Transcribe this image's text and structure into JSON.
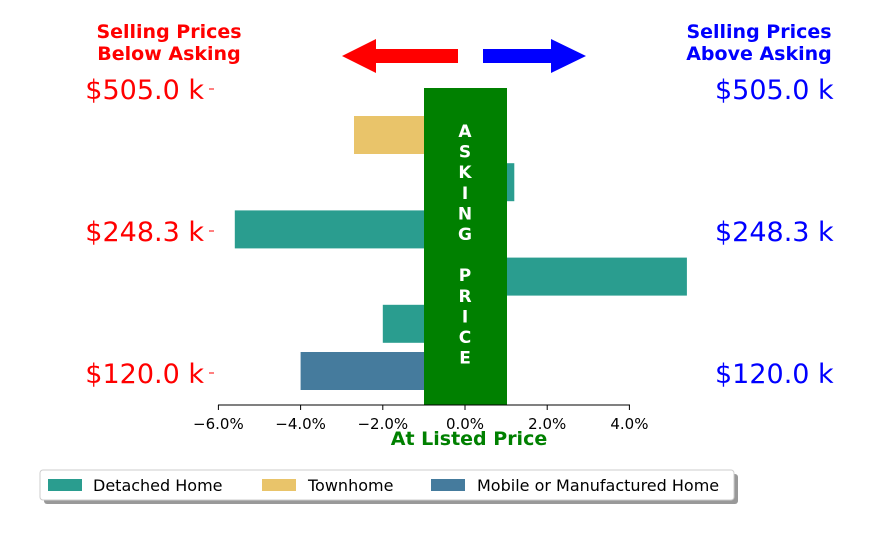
{
  "header": {
    "left_line1": "Selling Prices",
    "left_line2": "Below Asking",
    "right_line1": "Selling Prices",
    "right_line2": "Above Asking"
  },
  "colors": {
    "below": "#ff0000",
    "above": "#0000ff",
    "asking_bar": "#008000",
    "detached": "#2a9d8f",
    "townhome": "#e9c46a",
    "mobile": "#457b9d"
  },
  "asking_label_chars": [
    "A",
    "S",
    "K",
    "I",
    "N",
    "G",
    "",
    "P",
    "R",
    "I",
    "C",
    "E"
  ],
  "chart_data": {
    "type": "bar",
    "orientation": "horizontal",
    "xlabel": "At Listed Price",
    "xlim": [
      -6.2,
      8.8
    ],
    "xticks": [
      -6,
      -4,
      -2,
      0,
      2,
      4
    ],
    "xtick_labels": [
      "−6.0%",
      "−4.0%",
      "−2.0%",
      "0.0%",
      "2.0%",
      "4.0%"
    ],
    "left_price_labels": [
      "$505.0 k",
      "$248.3 k",
      "$120.0 k"
    ],
    "right_price_labels": [
      "$505.0 k",
      "$248.3 k",
      "$120.0 k"
    ],
    "legend": [
      "Detached Home",
      "Townhome",
      "Mobile or Manufactured Home"
    ],
    "legend_position": "bottom",
    "bars": [
      {
        "price": "$505.0 k",
        "type": "Townhome",
        "value": -2.7
      },
      {
        "price": "$505.0 k",
        "type": "Detached Home",
        "value": 1.2
      },
      {
        "price": "$248.3 k",
        "type": "Detached Home",
        "value": -5.6
      },
      {
        "price": "$248.3 k",
        "type": "Detached Home",
        "value": 5.4
      },
      {
        "price": "$120.0 k",
        "type": "Detached Home",
        "value": -2.0
      },
      {
        "price": "$120.0 k",
        "type": "Mobile or Manufactured Home",
        "value": -4.0
      }
    ],
    "grid": false
  }
}
